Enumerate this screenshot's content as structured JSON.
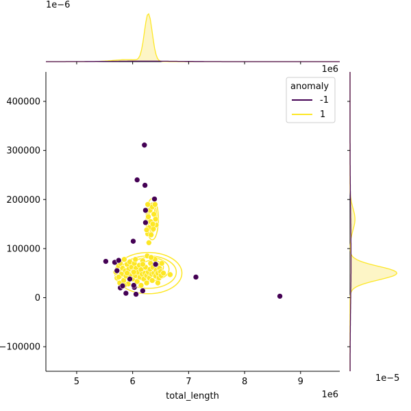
{
  "chart_data": {
    "type": "scatter",
    "title": "",
    "xlabel": "total_length",
    "ylabel": "",
    "x_offset": "1e6",
    "y_offset": "",
    "xlim": [
      4.45,
      9.7
    ],
    "ylim": [
      -150000,
      460000
    ],
    "x_ticks": [
      5,
      6,
      7,
      8,
      9
    ],
    "y_ticks": [
      -100000,
      0,
      100000,
      200000,
      300000,
      400000
    ],
    "x_tick_labels": [
      "5",
      "6",
      "7",
      "8",
      "9"
    ],
    "y_tick_labels": [
      "−100000",
      "0",
      "100000",
      "200000",
      "300000",
      "400000"
    ],
    "grid": false,
    "legend": {
      "title": "anomaly",
      "placement": "top-right",
      "entries": [
        {
          "label": "-1",
          "color": "#440154"
        },
        {
          "label": "1",
          "color": "#fde725"
        }
      ]
    },
    "colors": {
      "anomaly": "#440154",
      "normal": "#fde725",
      "normal_fill": "#fdf3b8",
      "edge": "#ffffff"
    },
    "series": [
      {
        "name": "-1",
        "color": "#440154",
        "points": [
          [
            5.52,
            74000
          ],
          [
            5.68,
            72000
          ],
          [
            5.72,
            55000
          ],
          [
            5.75,
            76000
          ],
          [
            5.78,
            20000
          ],
          [
            5.82,
            24000
          ],
          [
            5.88,
            9000
          ],
          [
            5.95,
            38000
          ],
          [
            6.01,
            115000
          ],
          [
            6.03,
            21000
          ],
          [
            6.06,
            7000
          ],
          [
            6.08,
            240000
          ],
          [
            6.18,
            14000
          ],
          [
            6.21,
            311000
          ],
          [
            6.22,
            229000
          ],
          [
            6.23,
            178000
          ],
          [
            6.23,
            153000
          ],
          [
            6.39,
            201000
          ],
          [
            6.41,
            68000
          ],
          [
            7.13,
            42000
          ],
          [
            8.63,
            3000
          ],
          [
            6.02,
            25000
          ]
        ]
      },
      {
        "name": "1",
        "color": "#fde725",
        "points": [
          [
            5.7,
            52000
          ],
          [
            5.72,
            40000
          ],
          [
            5.75,
            65000
          ],
          [
            5.77,
            30000
          ],
          [
            5.78,
            70000
          ],
          [
            5.8,
            48000
          ],
          [
            5.82,
            60000
          ],
          [
            5.84,
            35000
          ],
          [
            5.85,
            78000
          ],
          [
            5.87,
            55000
          ],
          [
            5.88,
            44000
          ],
          [
            5.9,
            68000
          ],
          [
            5.92,
            28000
          ],
          [
            5.93,
            58000
          ],
          [
            5.95,
            73000
          ],
          [
            5.96,
            47000
          ],
          [
            5.98,
            62000
          ],
          [
            6.0,
            38000
          ],
          [
            6.01,
            53000
          ],
          [
            6.03,
            70000
          ],
          [
            6.05,
            45000
          ],
          [
            6.06,
            60000
          ],
          [
            6.08,
            33000
          ],
          [
            6.1,
            52000
          ],
          [
            6.12,
            66000
          ],
          [
            6.13,
            42000
          ],
          [
            6.15,
            57000
          ],
          [
            6.17,
            48000
          ],
          [
            6.18,
            75000
          ],
          [
            6.2,
            38000
          ],
          [
            6.22,
            50000
          ],
          [
            6.23,
            62000
          ],
          [
            6.25,
            45000
          ],
          [
            6.26,
            85000
          ],
          [
            6.28,
            52000
          ],
          [
            6.3,
            40000
          ],
          [
            6.31,
            58000
          ],
          [
            6.32,
            70000
          ],
          [
            6.34,
            48000
          ],
          [
            6.35,
            35000
          ],
          [
            6.36,
            62000
          ],
          [
            6.38,
            50000
          ],
          [
            6.4,
            78000
          ],
          [
            6.41,
            44000
          ],
          [
            6.42,
            56000
          ],
          [
            6.44,
            66000
          ],
          [
            6.45,
            50000
          ],
          [
            6.47,
            40000
          ],
          [
            6.48,
            60000
          ],
          [
            6.5,
            53000
          ],
          [
            6.51,
            45000
          ],
          [
            6.52,
            70000
          ],
          [
            6.55,
            50000
          ],
          [
            6.67,
            47000
          ],
          [
            6.15,
            25000
          ],
          [
            6.25,
            30000
          ],
          [
            6.33,
            82000
          ],
          [
            6.29,
            112000
          ],
          [
            6.27,
            130000
          ],
          [
            6.3,
            143000
          ],
          [
            6.32,
            155000
          ],
          [
            6.28,
            165000
          ],
          [
            6.31,
            178000
          ],
          [
            6.35,
            185000
          ],
          [
            6.4,
            190000
          ],
          [
            6.38,
            170000
          ],
          [
            6.41,
            160000
          ],
          [
            6.42,
            148000
          ],
          [
            6.37,
            140000
          ],
          [
            6.25,
            138000
          ],
          [
            6.27,
            190000
          ],
          [
            6.33,
            128000
          ],
          [
            6.36,
            150000
          ],
          [
            5.75,
            42000
          ],
          [
            5.85,
            25000
          ],
          [
            6.05,
            78000
          ],
          [
            6.18,
            68000
          ],
          [
            6.45,
            30000
          ],
          [
            6.02,
            52000
          ],
          [
            5.9,
            50000
          ]
        ]
      }
    ],
    "contours": [
      {
        "cx": 6.28,
        "cy": 50000,
        "rx": 0.6,
        "ry": 42000
      },
      {
        "cx": 6.28,
        "cy": 52000,
        "rx": 0.5,
        "ry": 33000
      },
      {
        "cx": 6.3,
        "cy": 58000,
        "rx": 0.35,
        "ry": 24000
      },
      {
        "cx": 6.35,
        "cy": 62000,
        "rx": 0.2,
        "ry": 14000
      },
      {
        "cx": 6.35,
        "cy": 160000,
        "rx": 0.11,
        "ry": 42000
      },
      {
        "cx": 6.35,
        "cy": 163000,
        "rx": 0.08,
        "ry": 30000
      },
      {
        "cx": 6.35,
        "cy": 168000,
        "rx": 0.05,
        "ry": 18000
      }
    ],
    "marginal_x": {
      "offset_label": "1e−6",
      "curves": [
        {
          "name": "1",
          "color": "#fde725",
          "peak_x": 6.28,
          "sigma": 0.07,
          "peak_frac": 0.95,
          "shoulder": {
            "x": 5.9,
            "sigma": 0.25,
            "frac": 0.04
          }
        },
        {
          "name": "-1",
          "color": "#440154",
          "peak_x": 6.2,
          "sigma": 0.6,
          "peak_frac": 0.01
        }
      ]
    },
    "marginal_y": {
      "offset_label": "1e−5",
      "curves": [
        {
          "name": "1",
          "color": "#fde725",
          "peak_y": 50000,
          "sigma": 14000,
          "peak_frac": 0.95,
          "shoulder": {
            "y": 160000,
            "sigma": 22000,
            "frac": 0.1
          }
        },
        {
          "name": "-1",
          "color": "#440154",
          "peak_y": 80000,
          "sigma": 90000,
          "peak_frac": 0.02
        }
      ]
    }
  }
}
